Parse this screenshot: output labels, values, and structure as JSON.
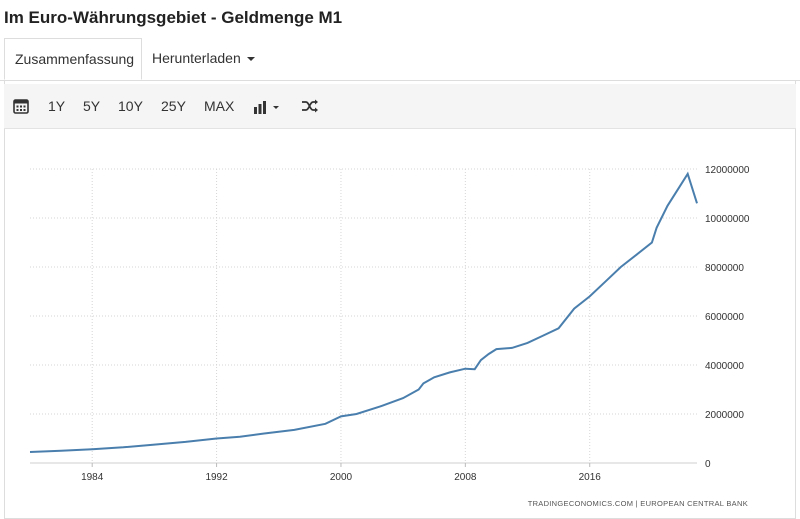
{
  "page": {
    "title": "Im Euro-Währungsgebiet - Geldmenge M1"
  },
  "tabs": [
    {
      "label": "Zusammenfassung",
      "active": true
    },
    {
      "label": "Herunterladen",
      "dropdown": true
    }
  ],
  "toolbar": {
    "calendar_icon": "calendar-icon",
    "ranges": [
      "1Y",
      "5Y",
      "10Y",
      "25Y",
      "MAX"
    ],
    "chart_type_icon": "bar-chart-icon",
    "shuffle_icon": "shuffle-icon"
  },
  "chart_data": {
    "type": "line",
    "title": "",
    "xlabel": "",
    "ylabel": "",
    "x_ticks": [
      "1984",
      "1992",
      "2000",
      "2008",
      "2016"
    ],
    "y_ticks": [
      "0",
      "2000000",
      "4000000",
      "6000000",
      "8000000",
      "10000000",
      "12000000"
    ],
    "xlim": [
      1980.0,
      2022.9
    ],
    "ylim": [
      0,
      12000000
    ],
    "grid": true,
    "y_axis_position": "right",
    "line_color": "#4a7fad",
    "source": "TRADINGECONOMICS.COM  |  EUROPEAN CENTRAL BANK",
    "series": [
      {
        "x": [
          1980.0,
          1982.0,
          1984.0,
          1986.0,
          1988.0,
          1990.0,
          1992.0,
          1993.5,
          1995.0,
          1997.0,
          1999.0,
          2000.0,
          2001.0,
          2002.5,
          2004.0,
          2005.0,
          2005.3,
          2006.0,
          2007.0,
          2008.0,
          2008.6,
          2009.0,
          2009.5,
          2010.0,
          2011.0,
          2012.0,
          2013.0,
          2014.0,
          2015.0,
          2016.0,
          2017.0,
          2018.0,
          2019.0,
          2020.0,
          2020.3,
          2021.0,
          2022.0,
          2022.3,
          2022.5,
          2022.9
        ],
        "values": [
          450000,
          500000,
          560000,
          640000,
          750000,
          860000,
          1000000,
          1070000,
          1200000,
          1350000,
          1600000,
          1900000,
          2000000,
          2300000,
          2650000,
          3000000,
          3250000,
          3500000,
          3700000,
          3850000,
          3830000,
          4200000,
          4450000,
          4650000,
          4700000,
          4900000,
          5200000,
          5500000,
          6300000,
          6800000,
          7400000,
          8000000,
          8500000,
          9000000,
          9600000,
          10500000,
          11500000,
          11800000,
          11400000,
          10600000
        ]
      }
    ]
  }
}
